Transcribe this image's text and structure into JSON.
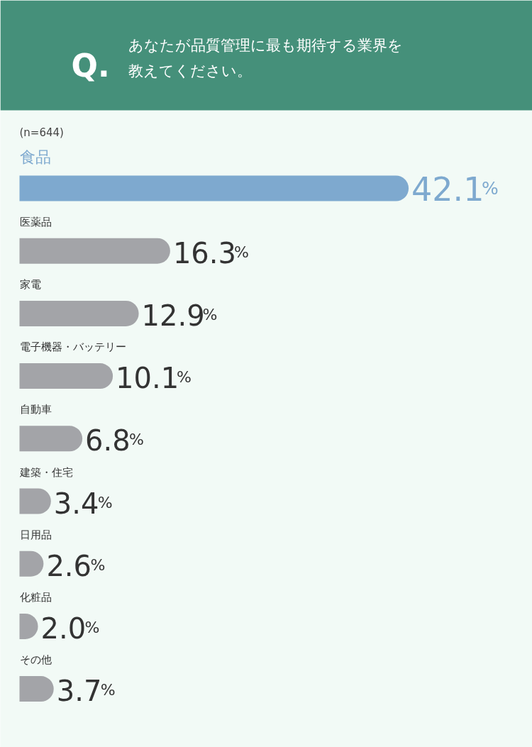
{
  "chart_data": {
    "type": "bar",
    "orientation": "horizontal",
    "title": "Q.あなたが品質管理に最も期待する業界を教えてください。",
    "annotations": [
      "(n=644)"
    ],
    "categories": [
      "食品",
      "医薬品",
      "家電",
      "電子機器・バッテリー",
      "自動車",
      "建築・住宅",
      "日用品",
      "化粧品",
      "その他"
    ],
    "values": [
      42.1,
      16.3,
      12.9,
      10.1,
      6.8,
      3.4,
      2.6,
      2.0,
      3.7
    ],
    "colors": [
      "#7ea9cf",
      "#a3a4a8",
      "#a3a4a8",
      "#a3a4a8",
      "#a3a4a8",
      "#a3a4a8",
      "#a3a4a8",
      "#a3a4a8",
      "#a3a4a8"
    ],
    "value_labels": [
      "42.1%",
      "16.3%",
      "12.9%",
      "10.1%",
      "6.8%",
      "3.4%",
      "2.6%",
      "2.0%",
      "3.7%"
    ]
  }
}
